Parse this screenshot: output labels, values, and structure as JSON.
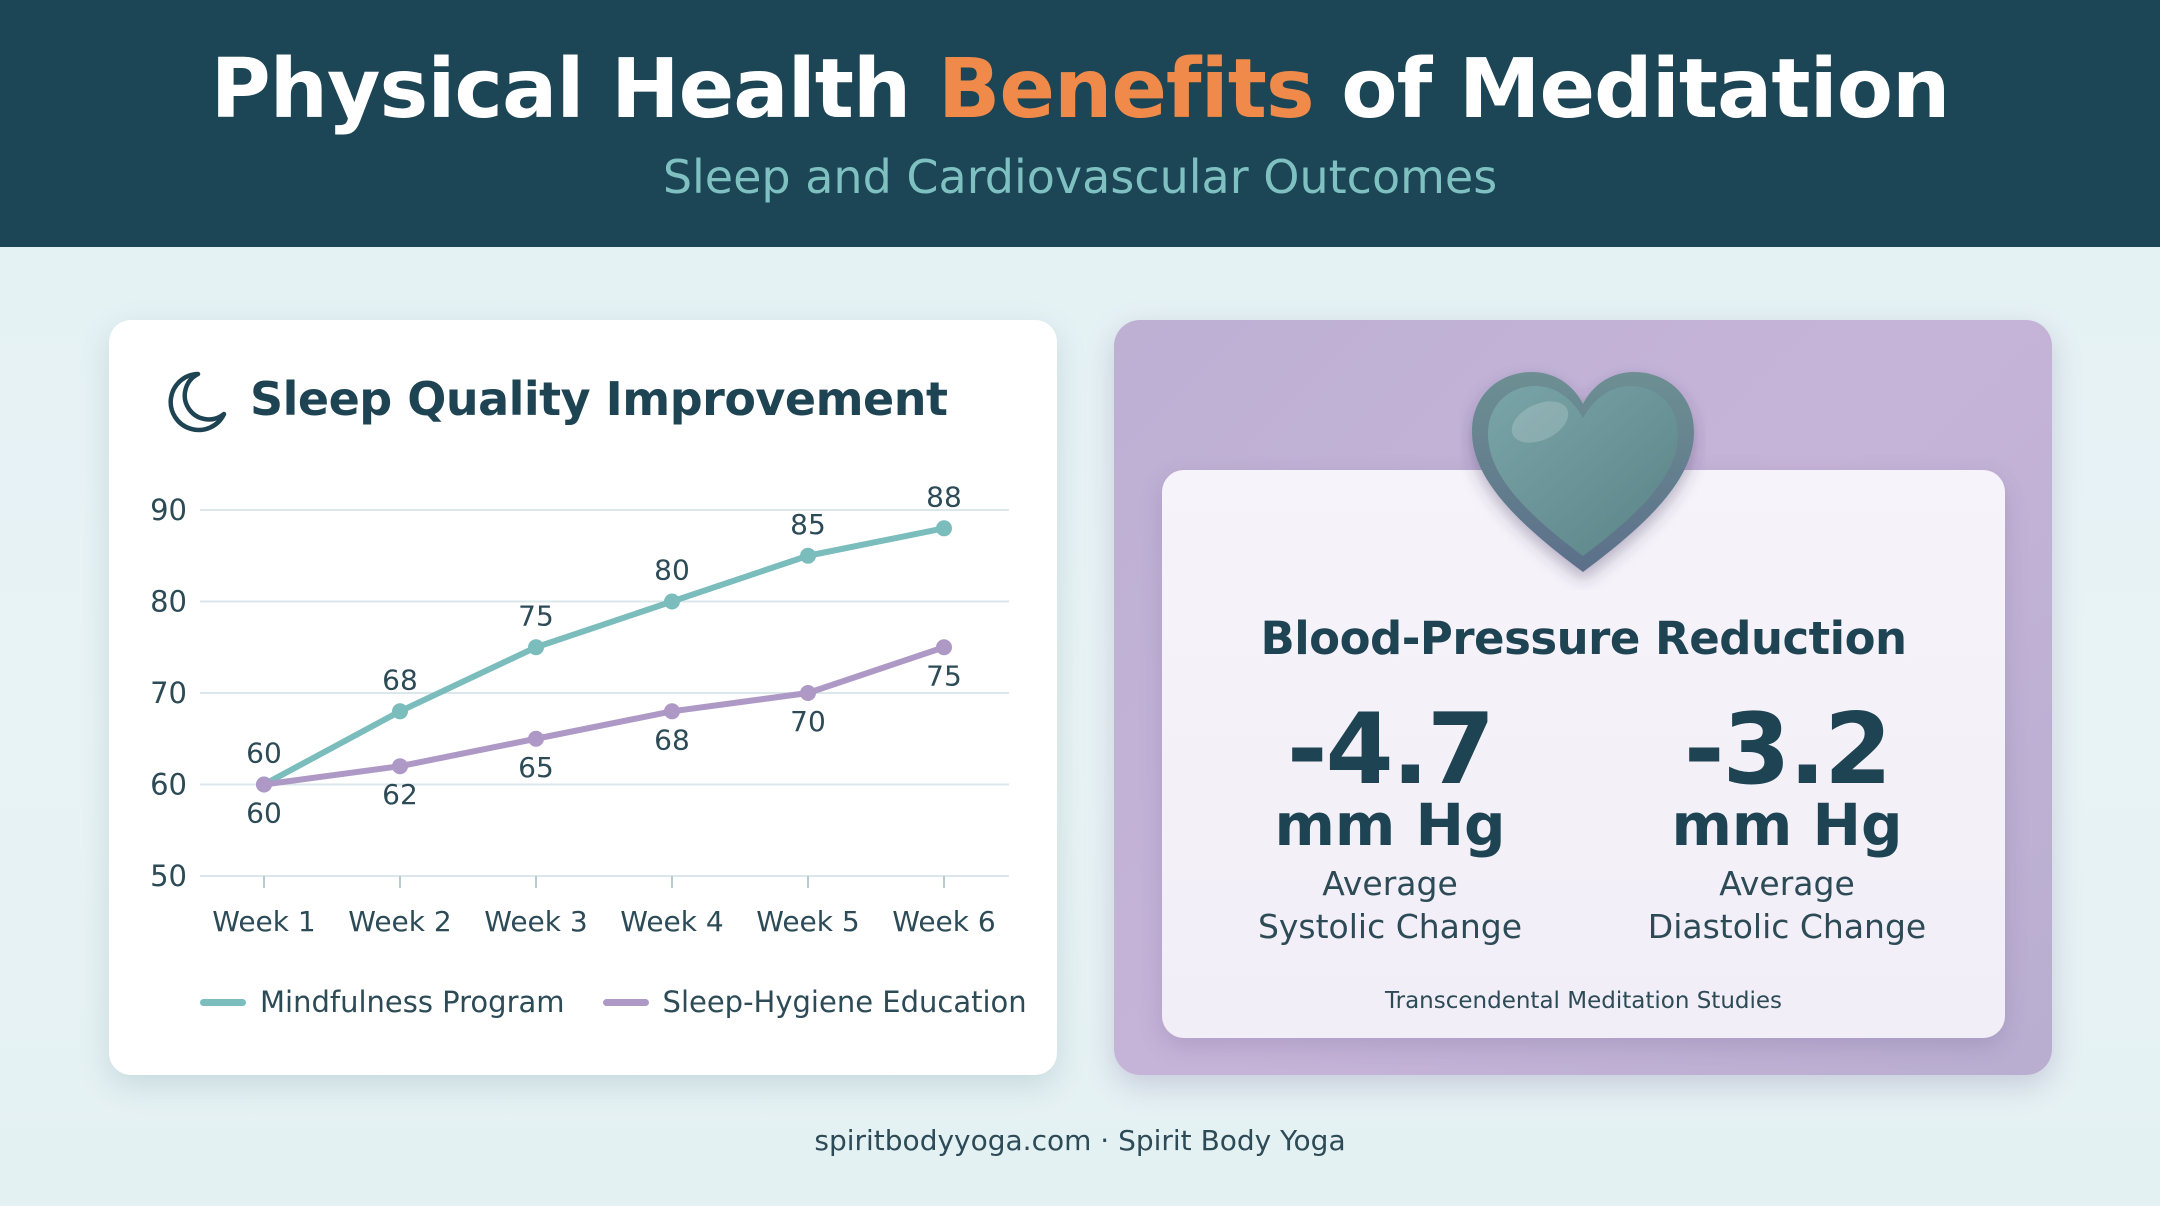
{
  "header": {
    "title_part1": "Physical Health ",
    "title_accent": "Benefits",
    "title_part2": " of Meditation",
    "subtitle": "Sleep and Cardiovascular Outcomes"
  },
  "sleep_card": {
    "title": "Sleep Quality Improvement",
    "icon": "moon-icon"
  },
  "chart_data": {
    "type": "line",
    "title": "Sleep Quality Improvement",
    "categories": [
      "Week 1",
      "Week 2",
      "Week 3",
      "Week 4",
      "Week 5",
      "Week 6"
    ],
    "series": [
      {
        "name": "Mindfulness Program",
        "values": [
          60,
          68,
          75,
          80,
          85,
          88
        ],
        "color": "#7bbcbc"
      },
      {
        "name": "Sleep-Hygiene Education",
        "values": [
          60,
          62,
          65,
          68,
          70,
          75
        ],
        "color": "#ad98c6"
      }
    ],
    "ylim": [
      50,
      90
    ],
    "yticks": [
      50,
      60,
      70,
      80,
      90
    ],
    "grid": true,
    "legend": "bottom",
    "xlabel": "",
    "ylabel": ""
  },
  "bp_card": {
    "icon": "heart-icon",
    "title": "Blood-Pressure Reduction",
    "systolic": {
      "value": "-4.7",
      "unit": "mm Hg",
      "label": "Average\nSystolic Change"
    },
    "diastolic": {
      "value": "-3.2",
      "unit": "mm Hg",
      "label": "Average\nDiastolic Change"
    },
    "source": "Transcendental Meditation Studies"
  },
  "footer": {
    "text": "spiritbodyyoga.com · Spirit Body Yoga"
  },
  "colors": {
    "header_bg": "#1c4556",
    "accent": "#ef8a4a",
    "teal": "#7bbcbc",
    "lavender": "#ad98c6",
    "dark_text": "#1e4453"
  }
}
